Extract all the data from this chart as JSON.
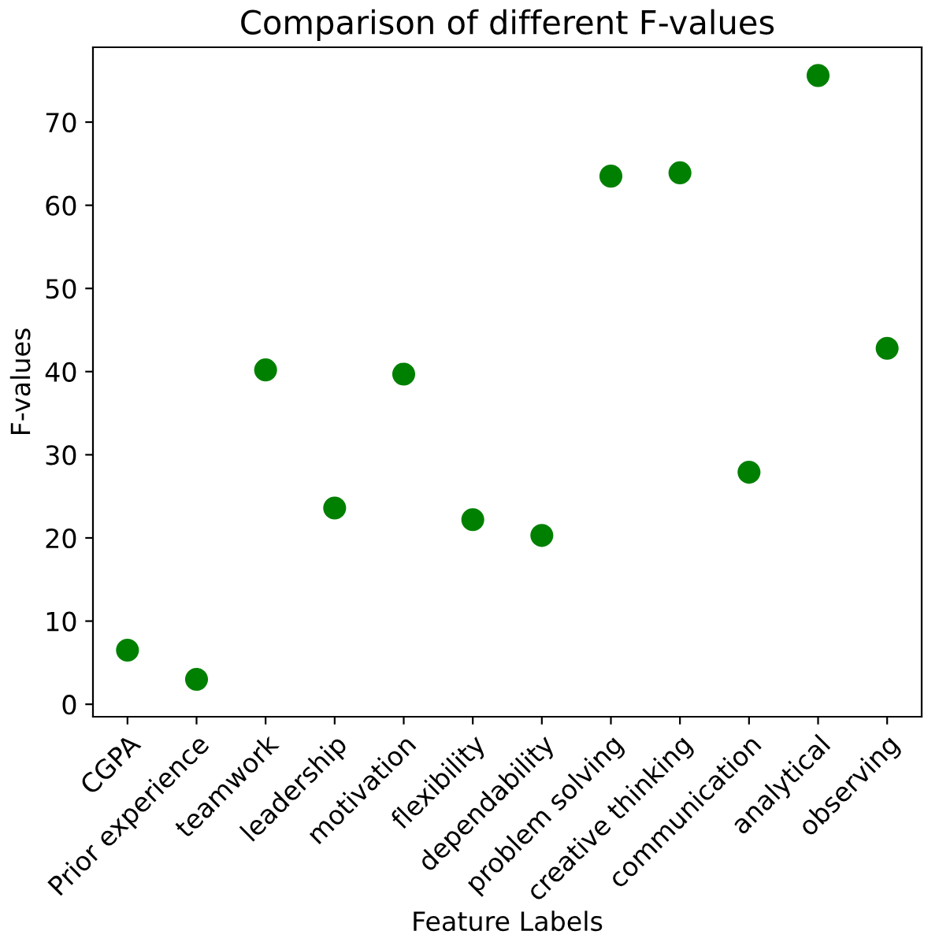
{
  "chart_data": {
    "type": "scatter",
    "title": "Comparison of different F-values",
    "xlabel": "Feature Labels",
    "ylabel": "F-values",
    "categories": [
      "CGPA",
      "Prior experience",
      "teamwork",
      "leadership",
      "motivation",
      "flexibility",
      "dependability",
      "problem solving",
      "creative thinking",
      "communication",
      "analytical",
      "observing"
    ],
    "series": [
      {
        "color": "#008000",
        "values": [
          6.5,
          3.0,
          40.2,
          23.6,
          39.7,
          22.2,
          20.3,
          63.5,
          63.9,
          27.9,
          75.6,
          42.8
        ]
      }
    ],
    "ylim": [
      -1.5,
      79
    ],
    "yticks": [
      0,
      10,
      20,
      30,
      40,
      50,
      60,
      70
    ],
    "grid": false,
    "marker": "circle",
    "legend": false
  }
}
